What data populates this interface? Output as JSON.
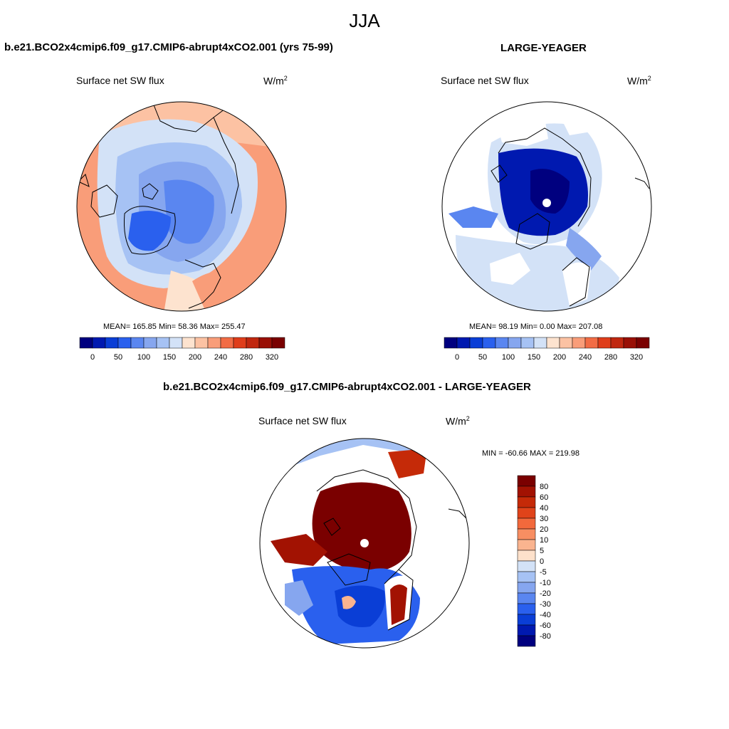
{
  "header": {
    "title": "JJA"
  },
  "panels": [
    {
      "title": "b.e21.BCO2x4cmip6.f09_g17.CMIP6-abrupt4xCO2.001 (yrs 75-99)",
      "var_label": "Surface net SW flux",
      "units": "W/m",
      "units_sup": "2",
      "stats": "MEAN= 165.85  Min=  58.36  Max= 255.47",
      "colorbar_ticks": [
        "0",
        "50",
        "100",
        "150",
        "200",
        "240",
        "280",
        "320"
      ]
    },
    {
      "title": "LARGE-YEAGER",
      "var_label": "Surface net SW flux",
      "units": "W/m",
      "units_sup": "2",
      "stats": "MEAN=  98.19  Min=   0.00  Max= 207.08",
      "colorbar_ticks": [
        "0",
        "50",
        "100",
        "150",
        "200",
        "240",
        "280",
        "320"
      ]
    },
    {
      "title": "b.e21.BCO2x4cmip6.f09_g17.CMIP6-abrupt4xCO2.001 - LARGE-YEAGER",
      "var_label": "Surface net SW flux",
      "units": "W/m",
      "units_sup": "2",
      "stats": "MIN = -60.66 MAX = 219.98",
      "colorbar_ticks": [
        "80",
        "60",
        "40",
        "30",
        "20",
        "10",
        "5",
        "0",
        "-5",
        "-10",
        "-20",
        "-30",
        "-40",
        "-60",
        "-80"
      ]
    }
  ],
  "colors": {
    "abs_scale": [
      "#00007f",
      "#0019b0",
      "#0a3ed6",
      "#2a60ee",
      "#5a86f0",
      "#86a6ef",
      "#a6c2f4",
      "#d3e2f7",
      "#fde3cf",
      "#fcc2a3",
      "#f99d79",
      "#f26c45",
      "#df3d1a",
      "#c0270f",
      "#990f05",
      "#7a0000"
    ],
    "diff_scale": [
      "#7a0000",
      "#a21202",
      "#c52a08",
      "#e0431a",
      "#f2693c",
      "#f88e62",
      "#fab48f",
      "#fde1cb",
      "#d3e2f7",
      "#a6c2f4",
      "#86a6ef",
      "#5a86f0",
      "#2a60ee",
      "#0a3ed6",
      "#0019b0",
      "#00007f"
    ]
  }
}
